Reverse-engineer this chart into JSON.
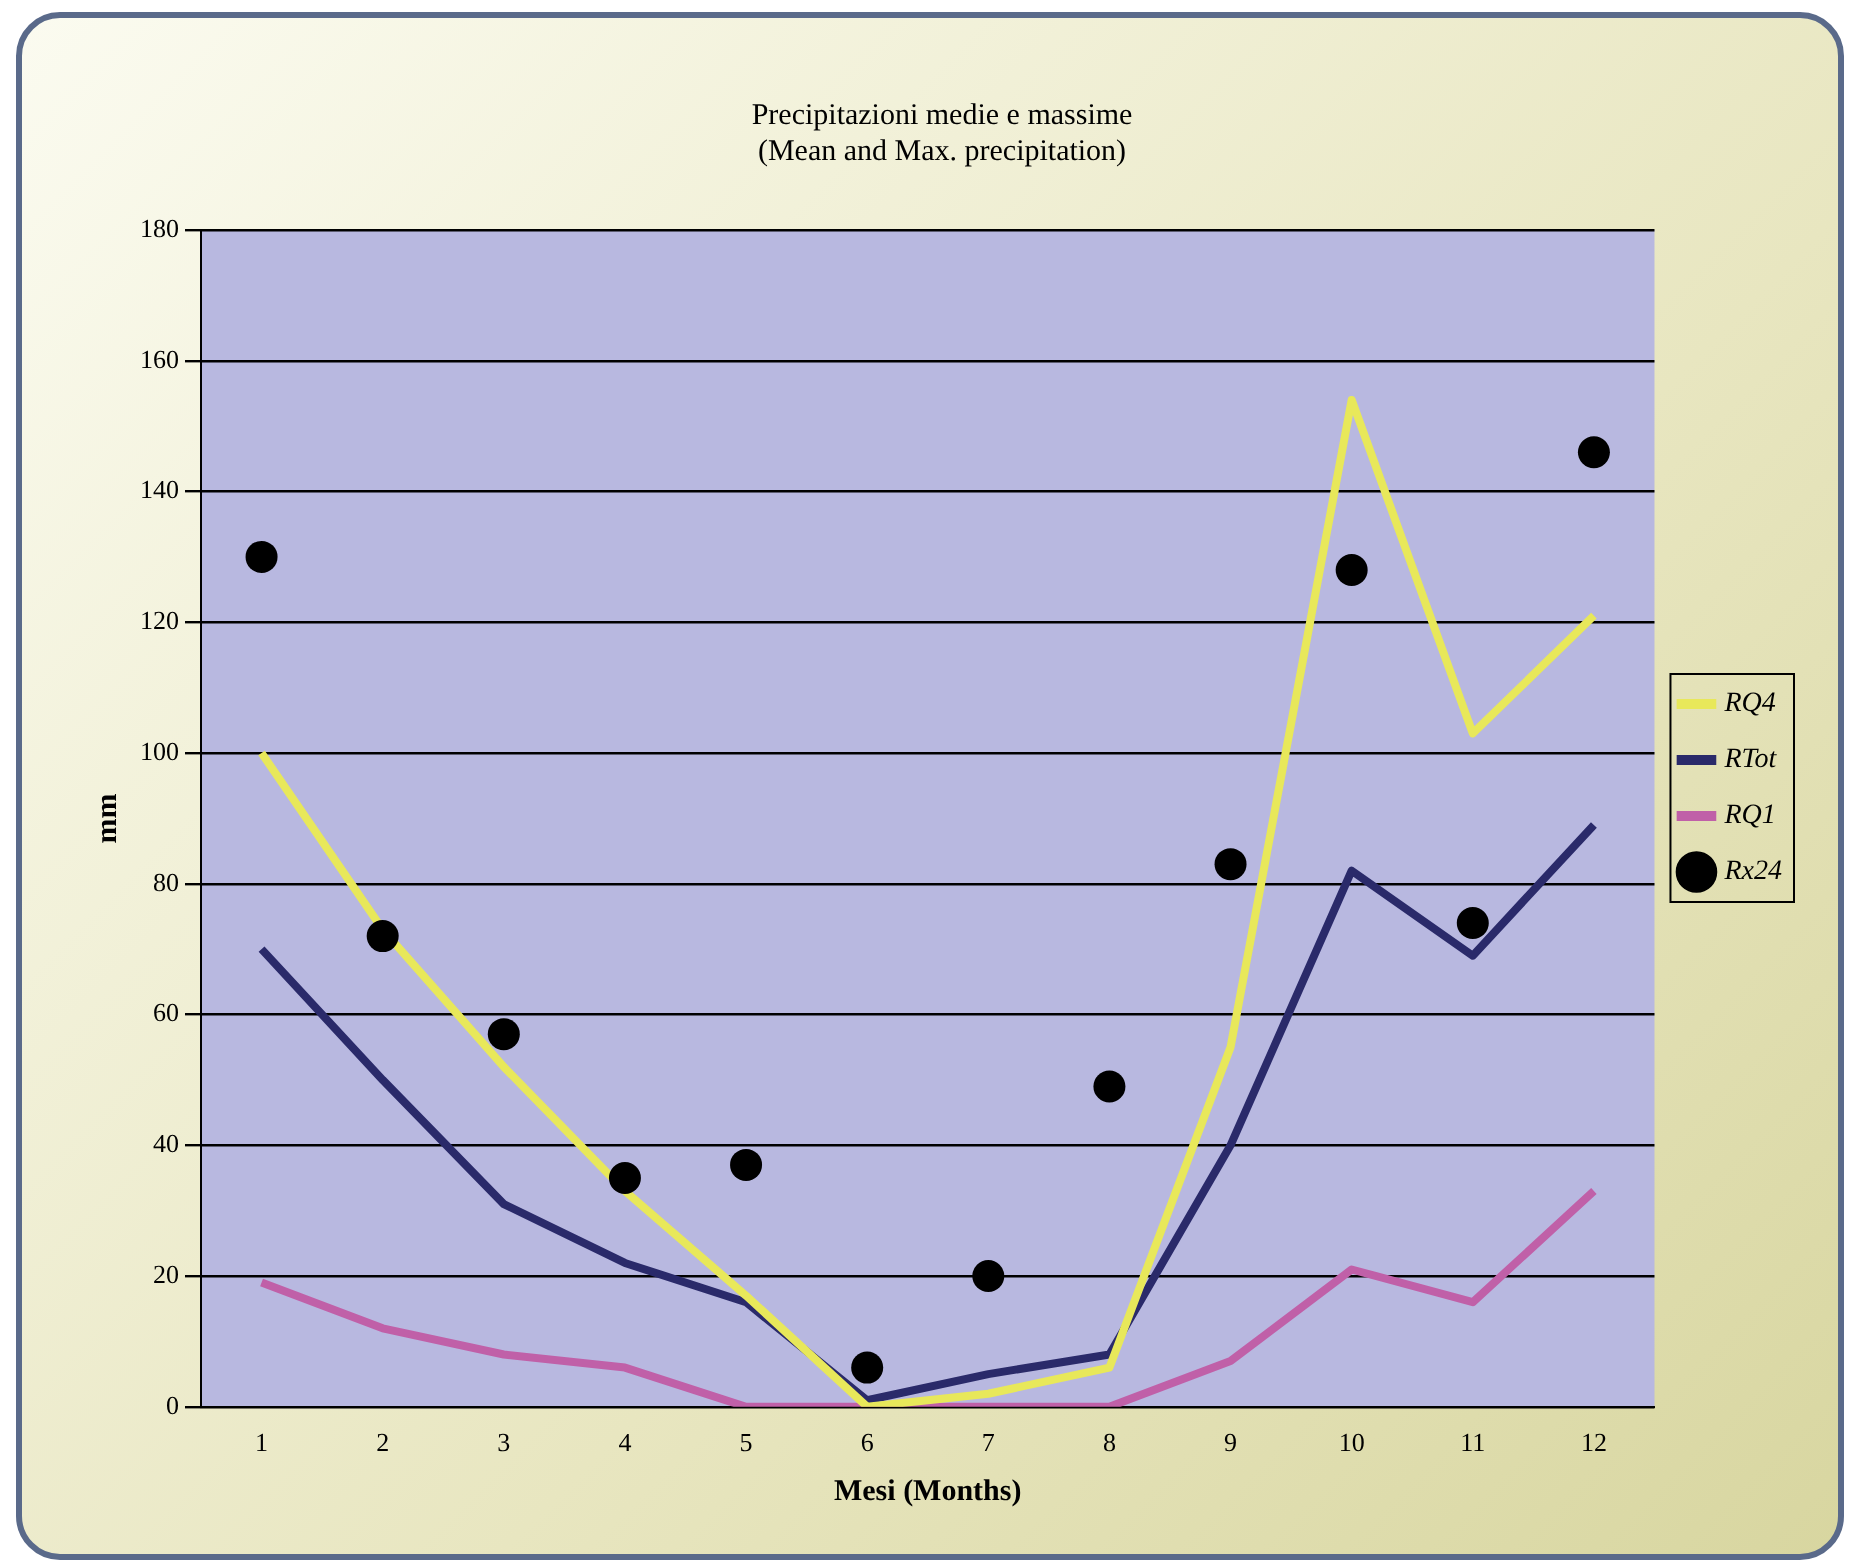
{
  "chart_data": {
    "type": "line",
    "title": "Precipitazioni medie e massime\n(Mean and Max. precipitation)",
    "xlabel": "Mesi (Months)",
    "ylabel": "mm",
    "x": [
      1,
      2,
      3,
      4,
      5,
      6,
      7,
      8,
      9,
      10,
      11,
      12
    ],
    "xlim": [
      0.5,
      12.5
    ],
    "xticks": [
      1,
      2,
      3,
      4,
      5,
      6,
      7,
      8,
      9,
      10,
      11,
      12
    ],
    "series": [
      {
        "name": "RQ4",
        "color": "#e8e85a",
        "marker": "none",
        "values": [
          100,
          73,
          52,
          33,
          17,
          0,
          2,
          6,
          55,
          154,
          103,
          121
        ]
      },
      {
        "name": "RTot",
        "color": "#2a2a6a",
        "marker": "none",
        "values": [
          70,
          50,
          31,
          22,
          16,
          1,
          5,
          8,
          40,
          82,
          69,
          89
        ]
      },
      {
        "name": "RQ1",
        "color": "#c060a8",
        "marker": "none",
        "values": [
          19,
          12,
          8,
          6,
          0,
          0,
          0,
          0,
          7,
          21,
          16,
          33
        ]
      },
      {
        "name": "Rx24",
        "type": "scatter",
        "color": "#000000",
        "marker": "circle",
        "values": [
          130,
          72,
          57,
          35,
          37,
          6,
          20,
          49,
          83,
          128,
          74,
          146
        ]
      }
    ],
    "ylim": [
      0,
      180
    ],
    "yticks": [
      0,
      20,
      40,
      60,
      80,
      100,
      120,
      140,
      160,
      180
    ],
    "grid": "y",
    "legend": "right"
  }
}
